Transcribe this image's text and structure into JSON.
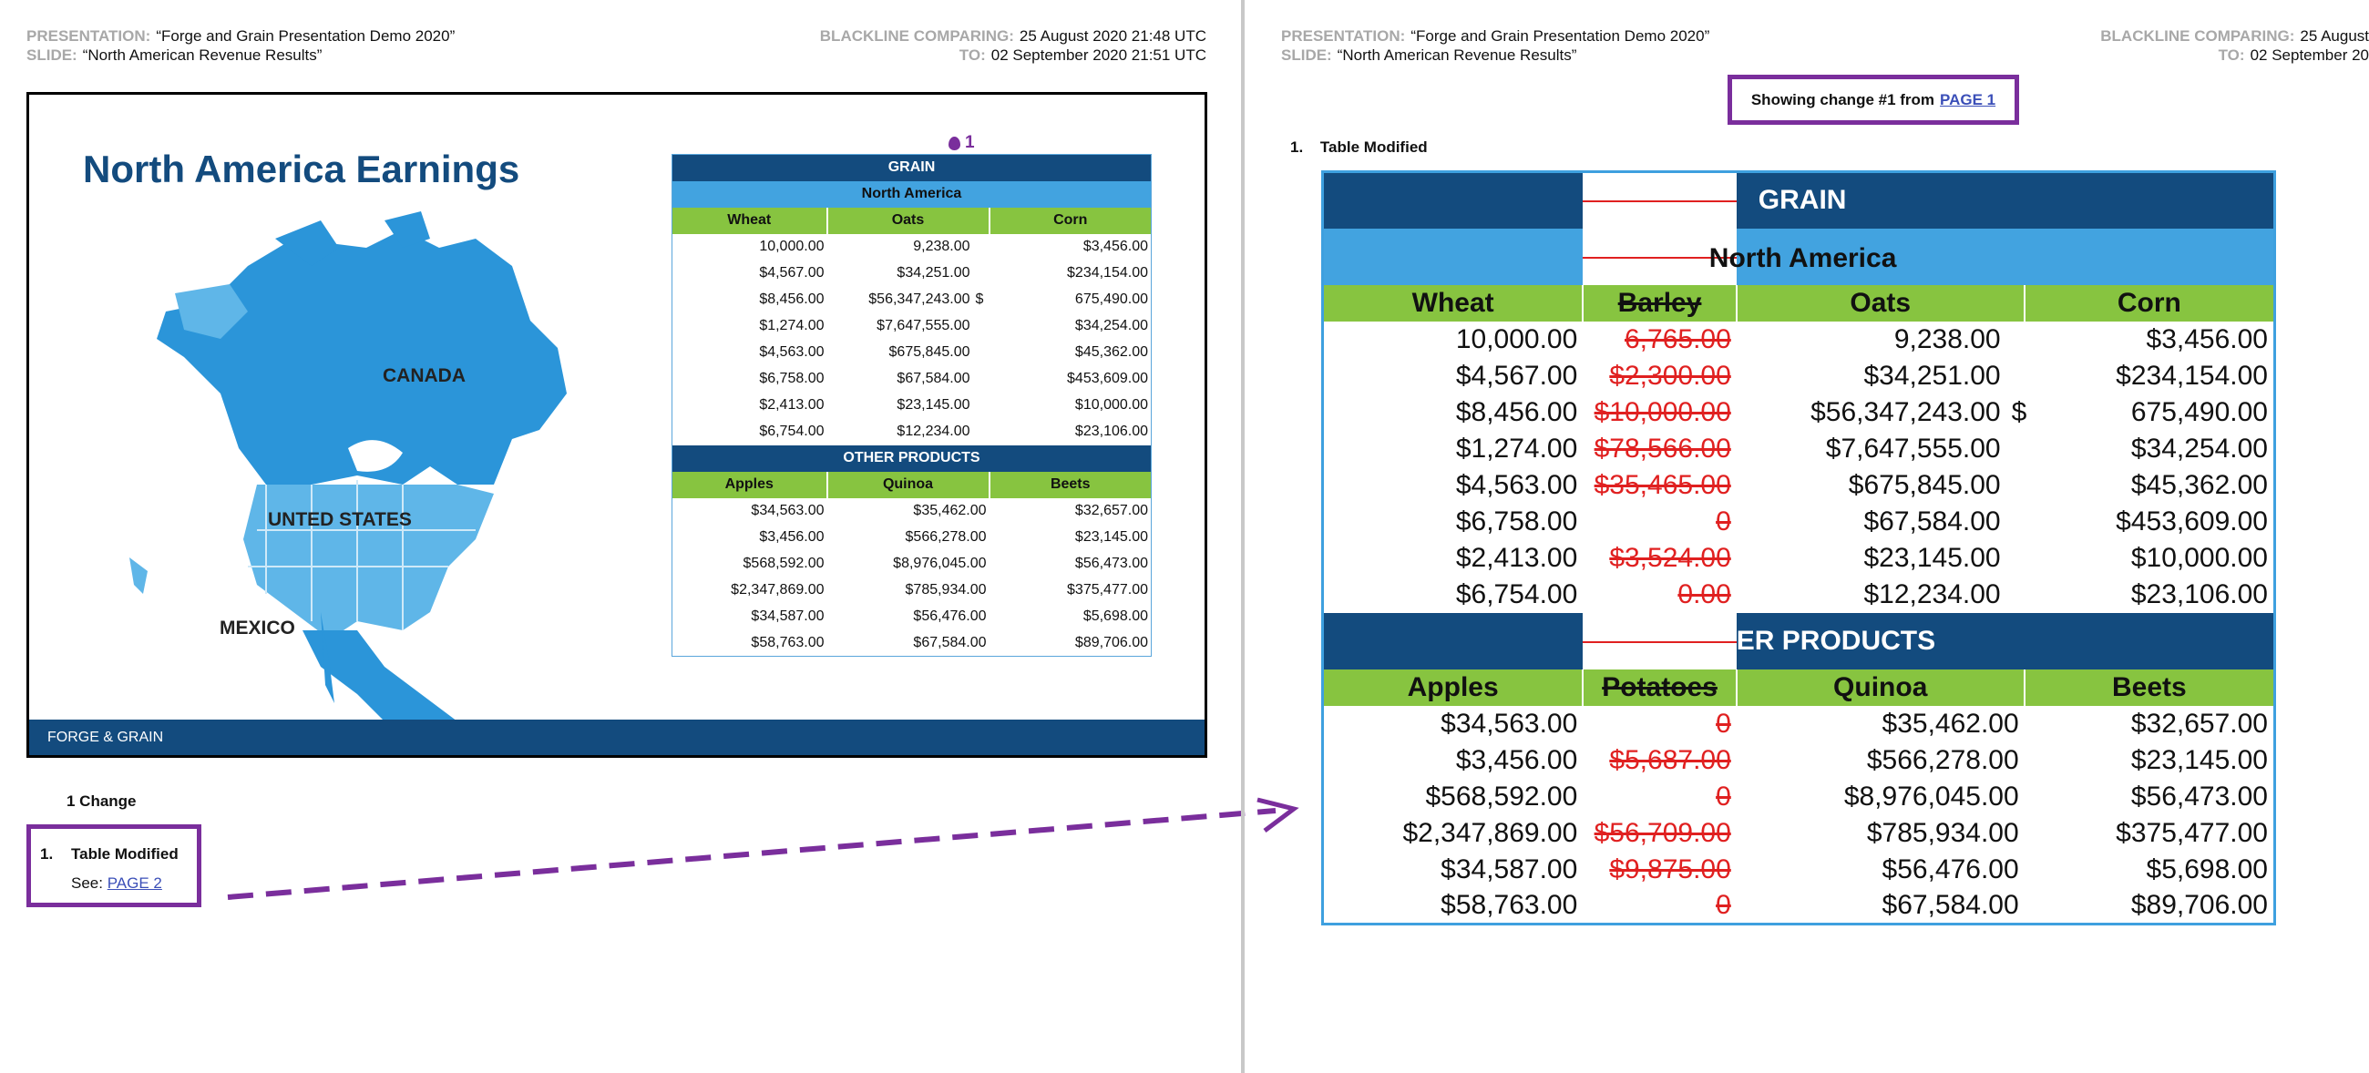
{
  "left_header": {
    "presentation_key": "PRESENTATION:",
    "presentation_value": "“Forge and Grain Presentation Demo  2020”",
    "slide_key": "SLIDE:",
    "slide_value": "“North American Revenue Results”",
    "compare_key": "BLACKLINE COMPARING:",
    "compare_value": "25 August 2020 21:48 UTC",
    "to_key": "TO:",
    "to_value": "02 September 2020 21:51 UTC"
  },
  "right_header": {
    "presentation_key": "PRESENTATION:",
    "presentation_value": "“Forge and Grain Presentation Demo  2020”",
    "slide_key": "SLIDE:",
    "slide_value": "“North American Revenue Results”",
    "compare_key": "BLACKLINE COMPARING:",
    "compare_value": "25 August",
    "to_key": "TO:",
    "to_value": "02 September 20"
  },
  "slide": {
    "title": "North America Earnings",
    "footer": "FORGE & GRAIN",
    "marker_number": "1",
    "map_labels": {
      "canada": "CANADA",
      "usa": "UNTED STATES",
      "mexico": "MEXICO"
    },
    "table": {
      "grain_band": "GRAIN",
      "region_band": "North America",
      "grain_headers": [
        "Wheat",
        "Oats",
        "Corn"
      ],
      "grain_rows": [
        [
          "10,000.00",
          "9,238.00",
          "",
          "$3,456.00"
        ],
        [
          "$4,567.00",
          "$34,251.00",
          "",
          "$234,154.00"
        ],
        [
          "$8,456.00",
          "$56,347,243.00",
          "$",
          "675,490.00"
        ],
        [
          "$1,274.00",
          "$7,647,555.00",
          "",
          "$34,254.00"
        ],
        [
          "$4,563.00",
          "$675,845.00",
          "",
          "$45,362.00"
        ],
        [
          "$6,758.00",
          "$67,584.00",
          "",
          "$453,609.00"
        ],
        [
          "$2,413.00",
          "$23,145.00",
          "",
          "$10,000.00"
        ],
        [
          "$6,754.00",
          "$12,234.00",
          "",
          "$23,106.00"
        ]
      ],
      "other_band": "OTHER PRODUCTS",
      "other_headers": [
        "Apples",
        "Quinoa",
        "Beets"
      ],
      "other_rows": [
        [
          "$34,563.00",
          "$35,462.00",
          "$32,657.00"
        ],
        [
          "$3,456.00",
          "$566,278.00",
          "$23,145.00"
        ],
        [
          "$568,592.00",
          "$8,976,045.00",
          "$56,473.00"
        ],
        [
          "$2,347,869.00",
          "$785,934.00",
          "$375,477.00"
        ],
        [
          "$34,587.00",
          "$56,476.00",
          "$5,698.00"
        ],
        [
          "$58,763.00",
          "$67,584.00",
          "$89,706.00"
        ]
      ]
    }
  },
  "changes": {
    "count_label": "1 Change",
    "item_number": "1.",
    "item_title": "Table Modified",
    "see_label": "See:",
    "see_link": "PAGE 2"
  },
  "right_pane": {
    "showing_label": "Showing change #1 from",
    "showing_link": "PAGE 1",
    "item_number": "1.",
    "item_title": "Table Modified",
    "table": {
      "grain_band": "GRAIN",
      "region_band": "North America",
      "grain_headers": [
        "Wheat",
        "Barley",
        "Oats",
        "Corn"
      ],
      "grain_rows": [
        [
          "10,000.00",
          "6,765.00",
          "9,238.00",
          "",
          "$3,456.00"
        ],
        [
          "$4,567.00",
          "$2,300.00",
          "$34,251.00",
          "",
          "$234,154.00"
        ],
        [
          "$8,456.00",
          "$10,000.00",
          "$56,347,243.00",
          "$",
          "675,490.00"
        ],
        [
          "$1,274.00",
          "$78,566.00",
          "$7,647,555.00",
          "",
          "$34,254.00"
        ],
        [
          "$4,563.00",
          "$35,465.00",
          "$675,845.00",
          "",
          "$45,362.00"
        ],
        [
          "$6,758.00",
          "0",
          "$67,584.00",
          "",
          "$453,609.00"
        ],
        [
          "$2,413.00",
          "$3,524.00",
          "$23,145.00",
          "",
          "$10,000.00"
        ],
        [
          "$6,754.00",
          "0.00",
          "$12,234.00",
          "",
          "$23,106.00"
        ]
      ],
      "other_band": "ER PRODUCTS",
      "other_headers": [
        "Apples",
        "Potatoes",
        "Quinoa",
        "Beets"
      ],
      "other_rows": [
        [
          "$34,563.00",
          "0",
          "$35,462.00",
          "$32,657.00"
        ],
        [
          "$3,456.00",
          "$5,687.00",
          "$566,278.00",
          "$23,145.00"
        ],
        [
          "$568,592.00",
          "0",
          "$8,976,045.00",
          "$56,473.00"
        ],
        [
          "$2,347,869.00",
          "$56,709.00",
          "$785,934.00",
          "$375,477.00"
        ],
        [
          "$34,587.00",
          "$9,875.00",
          "$56,476.00",
          "$5,698.00"
        ],
        [
          "$58,763.00",
          "0",
          "$67,584.00",
          "$89,706.00"
        ]
      ]
    }
  },
  "colors": {
    "accent_purple": "#7a2e9c",
    "navy": "#134b7e",
    "light_blue": "#42a3e0",
    "green": "#87c440",
    "deleted_red": "#e02020"
  }
}
